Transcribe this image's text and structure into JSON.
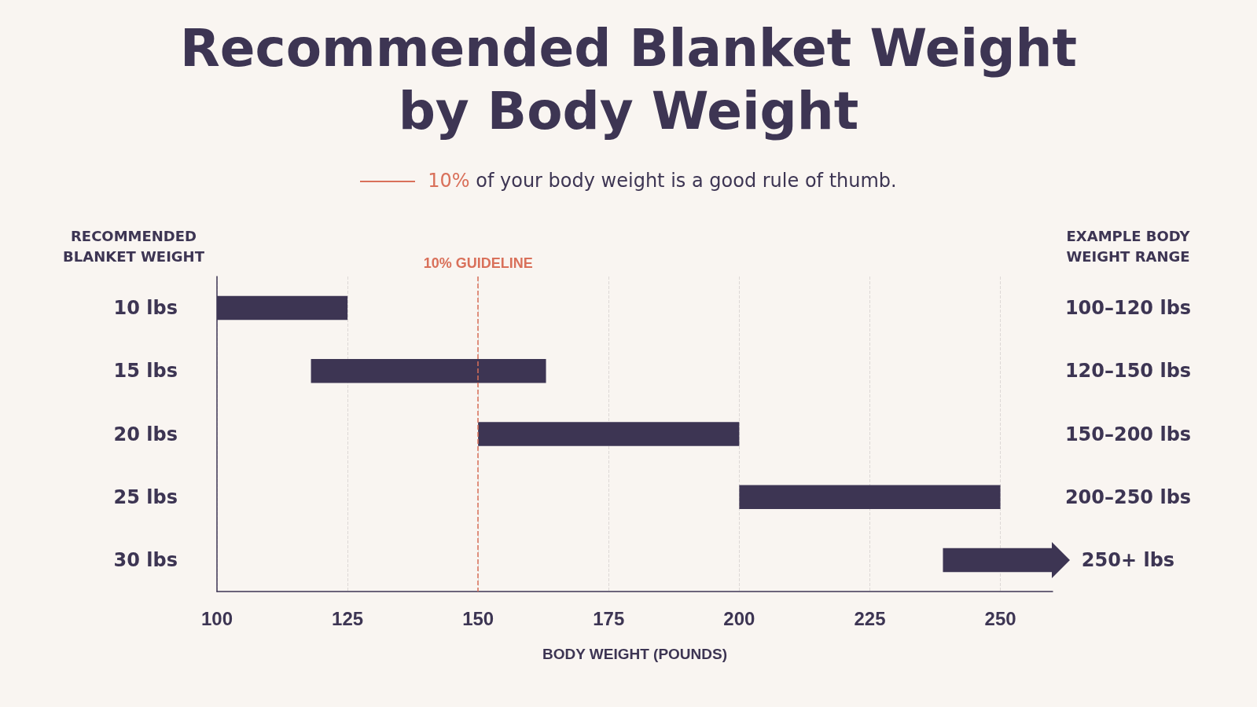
{
  "chart_data": {
    "type": "bar",
    "orientation": "horizontal",
    "title": "Recommended Blanket Weight by Body Weight",
    "subtitle": "10% of your body weight is a good rule of thumb.",
    "xlabel": "BODY WEIGHT (POUNDS)",
    "ylabel": "RECOMMENDED BLANKET WEIGHT",
    "y2label": "EXAMPLE BODY WEIGHT RANGE",
    "categories": [
      "10 lbs",
      "15 lbs",
      "20 lbs",
      "25 lbs",
      "30 lbs"
    ],
    "y2_categories": [
      "100–120 lbs",
      "120–150 lbs",
      "150–200 lbs",
      "200–250 lbs",
      "250+ lbs"
    ],
    "base": [
      100,
      118,
      150,
      200,
      239
    ],
    "values": [
      25,
      45,
      50,
      50,
      21
    ],
    "color": "#3d3553",
    "xlim": [
      100,
      260
    ],
    "xticks": [
      100,
      125,
      150,
      175,
      200,
      225,
      250
    ],
    "grid": "x",
    "ref_lines": [
      {
        "axis": "x",
        "value": 150,
        "label": "10% GUIDELINE",
        "color": "#d9705a",
        "line_style": "dashed"
      }
    ]
  }
}
